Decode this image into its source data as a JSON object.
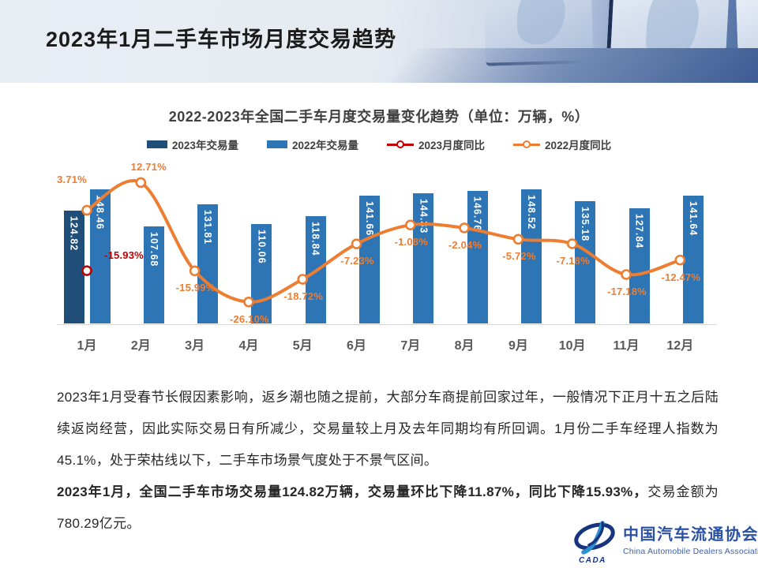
{
  "header": {
    "title": "2023年1月二手车市场月度交易趋势"
  },
  "chart": {
    "title": "2022-2023年全国二手车月度交易量变化趋势（单位：万辆，%）",
    "legend": [
      {
        "key": "2023-volume",
        "label": "2023年交易量",
        "type": "bar",
        "color": "#1F4E79"
      },
      {
        "key": "2022-volume",
        "label": "2022年交易量",
        "type": "bar",
        "color": "#2E75B6"
      },
      {
        "key": "2023-yoy",
        "label": "2023月度同比",
        "type": "line",
        "color": "#C00000"
      },
      {
        "key": "2022-yoy",
        "label": "2022月度同比",
        "type": "line",
        "color": "#ED7D31"
      }
    ]
  },
  "chart_data": {
    "type": "combo_bar_line",
    "title": "2022-2023年全国二手车月度交易量变化趋势（单位：万辆，%）",
    "unit": "万辆，%",
    "categories": [
      "1月",
      "2月",
      "3月",
      "4月",
      "5月",
      "6月",
      "7月",
      "8月",
      "9月",
      "10月",
      "11月",
      "12月"
    ],
    "series": [
      {
        "name": "2023年交易量",
        "type": "bar",
        "color": "#1F4E79",
        "values": [
          124.82,
          null,
          null,
          null,
          null,
          null,
          null,
          null,
          null,
          null,
          null,
          null
        ]
      },
      {
        "name": "2022年交易量",
        "type": "bar",
        "color": "#2E75B6",
        "values": [
          148.46,
          107.68,
          131.81,
          110.06,
          118.84,
          141.66,
          144.33,
          146.76,
          148.52,
          135.18,
          127.84,
          141.64
        ]
      },
      {
        "name": "2023月度同比",
        "type": "line",
        "color": "#C00000",
        "values": [
          -15.93,
          null,
          null,
          null,
          null,
          null,
          null,
          null,
          null,
          null,
          null,
          null
        ]
      },
      {
        "name": "2022月度同比",
        "type": "line",
        "color": "#ED7D31",
        "values": [
          3.71,
          12.71,
          -15.99,
          -26.1,
          -18.72,
          -7.23,
          -1.08,
          -2.04,
          -5.72,
          -7.18,
          -17.18,
          -12.47
        ]
      }
    ],
    "layout": {
      "axes_hidden": true,
      "bar_axis_range": [
        0,
        175
      ],
      "line_axis_range": [
        -33,
        18
      ],
      "legend_position": "top"
    }
  },
  "footer": {
    "paragraphs": [
      {
        "runs": [
          {
            "text": "2023年1月受春节长假因素影响，返乡潮也随之提前，大部分车商提前回家过年，一般情况下正月十五之后陆续返岗经营，因此实际交易日有所减少，交易量较上月及去年同期均有所回调。1月份二手车经理人指数为45.1%，处于荣枯线以下，二手车市场景气度处于不景气区间。",
            "bold": false
          }
        ]
      },
      {
        "runs": [
          {
            "text": "2023年1月，全国二手车市场交易量124.82万辆，交易量环比下降11.87%，同比下降15.93%，",
            "bold": true
          },
          {
            "text": "交易金额为780.29亿元。",
            "bold": false
          }
        ]
      }
    ]
  },
  "logo": {
    "acronym": "CADA",
    "name_zh": "中国汽车流通协会",
    "name_en": "China Automobile Dealers Association"
  },
  "colors": {
    "bar_2023": "#1F4E79",
    "bar_2022": "#2E75B6",
    "line_2023": "#C00000",
    "line_2022": "#ED7D31",
    "tick_text": "#595959",
    "title_text": "#404040"
  }
}
